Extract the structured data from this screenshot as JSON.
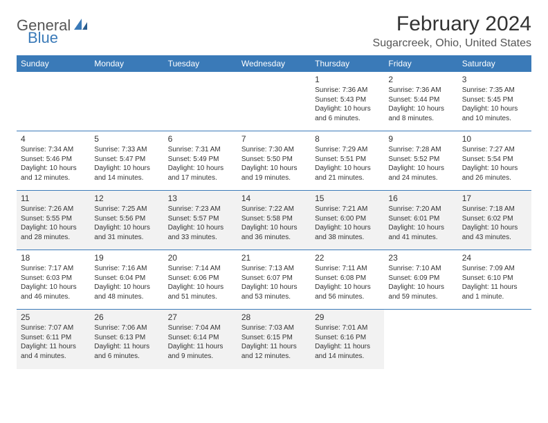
{
  "brand": {
    "text_gray": "General",
    "text_blue": "Blue",
    "shape_color": "#3a7ab8"
  },
  "title": "February 2024",
  "location": "Sugarcreek, Ohio, United States",
  "colors": {
    "header_bg": "#3a7ab8",
    "header_text": "#ffffff",
    "row_alt_bg": "#f2f2f2",
    "border": "#3a7ab8"
  },
  "day_headers": [
    "Sunday",
    "Monday",
    "Tuesday",
    "Wednesday",
    "Thursday",
    "Friday",
    "Saturday"
  ],
  "weeks": [
    [
      null,
      null,
      null,
      null,
      {
        "n": "1",
        "sunrise": "7:36 AM",
        "sunset": "5:43 PM",
        "daylight": "10 hours and 6 minutes."
      },
      {
        "n": "2",
        "sunrise": "7:36 AM",
        "sunset": "5:44 PM",
        "daylight": "10 hours and 8 minutes."
      },
      {
        "n": "3",
        "sunrise": "7:35 AM",
        "sunset": "5:45 PM",
        "daylight": "10 hours and 10 minutes."
      }
    ],
    [
      {
        "n": "4",
        "sunrise": "7:34 AM",
        "sunset": "5:46 PM",
        "daylight": "10 hours and 12 minutes."
      },
      {
        "n": "5",
        "sunrise": "7:33 AM",
        "sunset": "5:47 PM",
        "daylight": "10 hours and 14 minutes."
      },
      {
        "n": "6",
        "sunrise": "7:31 AM",
        "sunset": "5:49 PM",
        "daylight": "10 hours and 17 minutes."
      },
      {
        "n": "7",
        "sunrise": "7:30 AM",
        "sunset": "5:50 PM",
        "daylight": "10 hours and 19 minutes."
      },
      {
        "n": "8",
        "sunrise": "7:29 AM",
        "sunset": "5:51 PM",
        "daylight": "10 hours and 21 minutes."
      },
      {
        "n": "9",
        "sunrise": "7:28 AM",
        "sunset": "5:52 PM",
        "daylight": "10 hours and 24 minutes."
      },
      {
        "n": "10",
        "sunrise": "7:27 AM",
        "sunset": "5:54 PM",
        "daylight": "10 hours and 26 minutes."
      }
    ],
    [
      {
        "n": "11",
        "sunrise": "7:26 AM",
        "sunset": "5:55 PM",
        "daylight": "10 hours and 28 minutes."
      },
      {
        "n": "12",
        "sunrise": "7:25 AM",
        "sunset": "5:56 PM",
        "daylight": "10 hours and 31 minutes."
      },
      {
        "n": "13",
        "sunrise": "7:23 AM",
        "sunset": "5:57 PM",
        "daylight": "10 hours and 33 minutes."
      },
      {
        "n": "14",
        "sunrise": "7:22 AM",
        "sunset": "5:58 PM",
        "daylight": "10 hours and 36 minutes."
      },
      {
        "n": "15",
        "sunrise": "7:21 AM",
        "sunset": "6:00 PM",
        "daylight": "10 hours and 38 minutes."
      },
      {
        "n": "16",
        "sunrise": "7:20 AM",
        "sunset": "6:01 PM",
        "daylight": "10 hours and 41 minutes."
      },
      {
        "n": "17",
        "sunrise": "7:18 AM",
        "sunset": "6:02 PM",
        "daylight": "10 hours and 43 minutes."
      }
    ],
    [
      {
        "n": "18",
        "sunrise": "7:17 AM",
        "sunset": "6:03 PM",
        "daylight": "10 hours and 46 minutes."
      },
      {
        "n": "19",
        "sunrise": "7:16 AM",
        "sunset": "6:04 PM",
        "daylight": "10 hours and 48 minutes."
      },
      {
        "n": "20",
        "sunrise": "7:14 AM",
        "sunset": "6:06 PM",
        "daylight": "10 hours and 51 minutes."
      },
      {
        "n": "21",
        "sunrise": "7:13 AM",
        "sunset": "6:07 PM",
        "daylight": "10 hours and 53 minutes."
      },
      {
        "n": "22",
        "sunrise": "7:11 AM",
        "sunset": "6:08 PM",
        "daylight": "10 hours and 56 minutes."
      },
      {
        "n": "23",
        "sunrise": "7:10 AM",
        "sunset": "6:09 PM",
        "daylight": "10 hours and 59 minutes."
      },
      {
        "n": "24",
        "sunrise": "7:09 AM",
        "sunset": "6:10 PM",
        "daylight": "11 hours and 1 minute."
      }
    ],
    [
      {
        "n": "25",
        "sunrise": "7:07 AM",
        "sunset": "6:11 PM",
        "daylight": "11 hours and 4 minutes."
      },
      {
        "n": "26",
        "sunrise": "7:06 AM",
        "sunset": "6:13 PM",
        "daylight": "11 hours and 6 minutes."
      },
      {
        "n": "27",
        "sunrise": "7:04 AM",
        "sunset": "6:14 PM",
        "daylight": "11 hours and 9 minutes."
      },
      {
        "n": "28",
        "sunrise": "7:03 AM",
        "sunset": "6:15 PM",
        "daylight": "11 hours and 12 minutes."
      },
      {
        "n": "29",
        "sunrise": "7:01 AM",
        "sunset": "6:16 PM",
        "daylight": "11 hours and 14 minutes."
      },
      null,
      null
    ]
  ],
  "labels": {
    "sunrise": "Sunrise:",
    "sunset": "Sunset:",
    "daylight": "Daylight:"
  }
}
